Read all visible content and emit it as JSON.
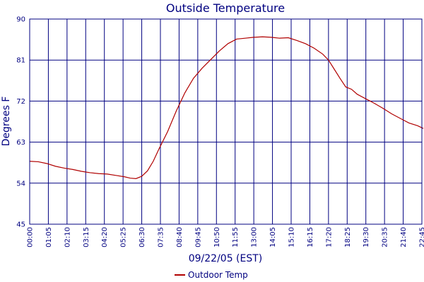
{
  "chart_data": {
    "type": "line",
    "title": "Outside Temperature",
    "xlabel": "09/22/05 (EST)",
    "ylabel": "Degrees F",
    "ylim": [
      45,
      90
    ],
    "yticks": [
      45,
      54,
      63,
      72,
      81,
      90
    ],
    "x_tick_labels": [
      "00:00",
      "01:05",
      "02:10",
      "03:15",
      "04:20",
      "05:25",
      "06:30",
      "07:35",
      "08:40",
      "09:45",
      "10:50",
      "11:55",
      "13:00",
      "14:05",
      "15:10",
      "16:15",
      "17:20",
      "18:25",
      "19:30",
      "20:35",
      "21:40",
      "22:45"
    ],
    "grid": true,
    "legend_position": "bottom-center",
    "colors": {
      "line": "#b00000",
      "grid": "#000080",
      "text": "#000080"
    },
    "series": [
      {
        "name": "Outdoor Temp",
        "x": [
          "00:00",
          "00:30",
          "01:00",
          "01:30",
          "02:00",
          "02:30",
          "03:00",
          "03:30",
          "04:00",
          "04:30",
          "05:00",
          "05:30",
          "05:50",
          "06:10",
          "06:30",
          "06:50",
          "07:10",
          "07:30",
          "08:00",
          "08:30",
          "09:00",
          "09:30",
          "10:00",
          "10:30",
          "11:00",
          "11:30",
          "12:00",
          "12:30",
          "13:00",
          "13:30",
          "14:00",
          "14:30",
          "15:00",
          "15:30",
          "16:00",
          "16:30",
          "17:00",
          "17:20",
          "17:40",
          "18:00",
          "18:20",
          "18:40",
          "19:00",
          "19:30",
          "20:00",
          "20:30",
          "21:00",
          "21:30",
          "22:00",
          "22:30",
          "22:50"
        ],
        "values": [
          58.8,
          58.7,
          58.3,
          57.7,
          57.3,
          57.0,
          56.6,
          56.3,
          56.1,
          56.0,
          55.7,
          55.4,
          55.1,
          55.0,
          55.5,
          56.7,
          58.8,
          61.5,
          65.3,
          69.8,
          73.8,
          77.0,
          79.2,
          81.1,
          83.0,
          84.6,
          85.6,
          85.8,
          86.0,
          86.1,
          86.0,
          85.8,
          85.9,
          85.3,
          84.6,
          83.6,
          82.3,
          81.0,
          79.0,
          77.0,
          75.1,
          74.6,
          73.5,
          72.5,
          71.5,
          70.4,
          69.2,
          68.2,
          67.2,
          66.6,
          66.0
        ]
      }
    ]
  }
}
